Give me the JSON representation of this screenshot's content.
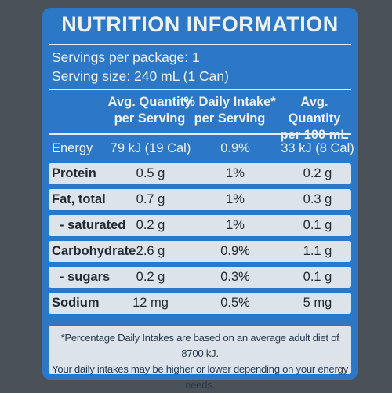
{
  "title": "NUTRITION INFORMATION",
  "servings_per_package": "Servings per package: 1",
  "serving_size": "Serving size: 240 mL (1 Can)",
  "columns": [
    {
      "line1": "Avg. Quantity",
      "line2": "per Serving"
    },
    {
      "line1": "% Daily Intake*",
      "line2": "per Serving"
    },
    {
      "line1": "Avg. Quantity",
      "line2": "per 100 mL"
    }
  ],
  "rows": [
    {
      "name": "Energy",
      "per_serving": "79 kJ (19 Cal)",
      "daily_intake": "0.9%",
      "per_100ml": "33 kJ (8 Cal)"
    },
    {
      "name": "Protein",
      "per_serving": "0.5 g",
      "daily_intake": "1%",
      "per_100ml": "0.2 g"
    },
    {
      "name": "Fat, total",
      "per_serving": "0.7 g",
      "daily_intake": "1%",
      "per_100ml": "0.3 g"
    },
    {
      "name": "- saturated",
      "per_serving": "0.2 g",
      "daily_intake": "1%",
      "per_100ml": "0.1 g"
    },
    {
      "name": "Carbohydrate",
      "per_serving": "2.6 g",
      "daily_intake": "0.9%",
      "per_100ml": "1.1 g"
    },
    {
      "name": "- sugars",
      "per_serving": "0.2 g",
      "daily_intake": "0.3%",
      "per_100ml": "0.1 g"
    },
    {
      "name": "Sodium",
      "per_serving": "12 mg",
      "daily_intake": "0.5%",
      "per_100ml": "5 mg"
    }
  ],
  "footnote_line1": "*Percentage Daily Intakes are based on an average adult diet of 8700 kJ.",
  "footnote_line2": "Your daily intakes may be higher or lower depending on your energy needs.",
  "colors": {
    "label_blue": "#2d78c6",
    "row_light": "#dde3ea",
    "background": "#4a5158"
  }
}
